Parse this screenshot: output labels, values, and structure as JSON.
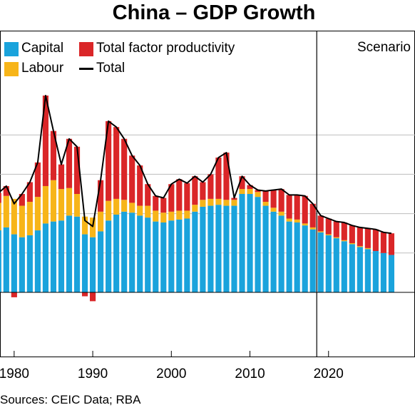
{
  "chart_data": {
    "type": "bar",
    "title": "China – GDP Growth",
    "stacked": true,
    "years": [
      1977,
      1978,
      1979,
      1980,
      1981,
      1982,
      1983,
      1984,
      1985,
      1986,
      1987,
      1988,
      1989,
      1990,
      1991,
      1992,
      1993,
      1994,
      1995,
      1996,
      1997,
      1998,
      1999,
      2000,
      2001,
      2002,
      2003,
      2004,
      2005,
      2006,
      2007,
      2008,
      2009,
      2010,
      2011,
      2012,
      2013,
      2014,
      2015,
      2016,
      2017,
      2018,
      2019,
      2020,
      2021,
      2022,
      2023,
      2024,
      2025,
      2026,
      2027,
      2028
    ],
    "series": [
      {
        "name": "Capital",
        "color": "#1aa3dc",
        "values": [
          5.5,
          6.3,
          6.6,
          5.9,
          5.6,
          5.8,
          6.3,
          7.0,
          7.2,
          7.3,
          7.8,
          7.7,
          5.9,
          5.6,
          6.2,
          7.3,
          7.9,
          8.2,
          8.1,
          7.8,
          7.6,
          7.2,
          7.1,
          7.3,
          7.4,
          7.5,
          8.2,
          8.7,
          8.8,
          8.9,
          8.8,
          8.8,
          10.0,
          10.0,
          9.7,
          8.8,
          8.2,
          7.8,
          7.2,
          7.1,
          6.8,
          6.4,
          6.1,
          5.8,
          5.5,
          5.2,
          4.9,
          4.6,
          4.4,
          4.2,
          4.0,
          3.8
        ]
      },
      {
        "name": "Labour",
        "color": "#f7b519",
        "values": [
          3.5,
          2.8,
          3.2,
          3.6,
          3.2,
          3.4,
          3.4,
          3.8,
          4.2,
          3.2,
          2.8,
          2.3,
          1.8,
          2.0,
          2.0,
          2.0,
          1.6,
          1.2,
          1.0,
          1.0,
          1.2,
          1.1,
          1.0,
          0.9,
          0.9,
          0.8,
          0.7,
          0.7,
          0.7,
          0.6,
          0.6,
          0.6,
          0.5,
          0.5,
          0.5,
          0.4,
          0.4,
          0.4,
          0.3,
          0.3,
          0.2,
          0.2,
          0.1,
          0.1,
          0.1,
          0.1,
          0.1,
          0.1,
          0.1,
          0.0,
          0.0,
          0.0
        ]
      },
      {
        "name": "Total factor productivity",
        "color": "#da2628",
        "values": [
          3.0,
          1.0,
          1.0,
          -0.5,
          1.2,
          2.0,
          3.5,
          9.2,
          5.0,
          2.5,
          5.0,
          4.8,
          -0.4,
          -0.9,
          3.2,
          8.1,
          7.3,
          6.2,
          4.8,
          4.1,
          2.2,
          1.5,
          1.5,
          2.8,
          3.2,
          2.8,
          2.9,
          1.8,
          2.5,
          4.2,
          4.8,
          0.2,
          1.3,
          0.4,
          0.2,
          1.1,
          1.8,
          2.3,
          2.4,
          2.5,
          2.8,
          2.4,
          1.6,
          1.6,
          1.6,
          1.8,
          1.8,
          1.9,
          2.0,
          2.2,
          2.1,
          2.2
        ]
      },
      {
        "name": "Total",
        "color": "#000000",
        "type": "line",
        "values": [
          12.0,
          10.1,
          10.8,
          9.0,
          10.0,
          11.2,
          13.2,
          20.0,
          16.4,
          13.0,
          15.6,
          14.8,
          7.3,
          6.7,
          11.4,
          17.4,
          16.8,
          15.6,
          13.9,
          12.9,
          11.0,
          9.8,
          9.6,
          11.0,
          11.5,
          11.1,
          11.8,
          11.2,
          12.0,
          13.7,
          14.2,
          9.6,
          11.8,
          10.9,
          10.4,
          10.3,
          10.4,
          10.5,
          9.9,
          9.9,
          9.8,
          9.0,
          7.8,
          7.5,
          7.2,
          7.1,
          6.8,
          6.6,
          6.5,
          6.4,
          6.1,
          6.0
        ]
      }
    ],
    "xticks": [
      1980,
      1990,
      2000,
      2010,
      2020
    ],
    "xtick_labels": [
      "1980",
      "1990",
      "2000",
      "2010",
      "2020"
    ],
    "xlim": [
      1978.2,
      2031
    ],
    "ylim": [
      -4,
      20
    ],
    "ygrid": [
      -4,
      0,
      4,
      8,
      12,
      16,
      20
    ],
    "vline_at": 2018.5,
    "annotation": "Scenario",
    "legend_position": "top-left",
    "grid": true
  },
  "legend": {
    "capital": "Capital",
    "labour": "Labour",
    "tfp": "Total factor productivity",
    "total": "Total"
  },
  "source": "Sources: CEIC Data; RBA"
}
